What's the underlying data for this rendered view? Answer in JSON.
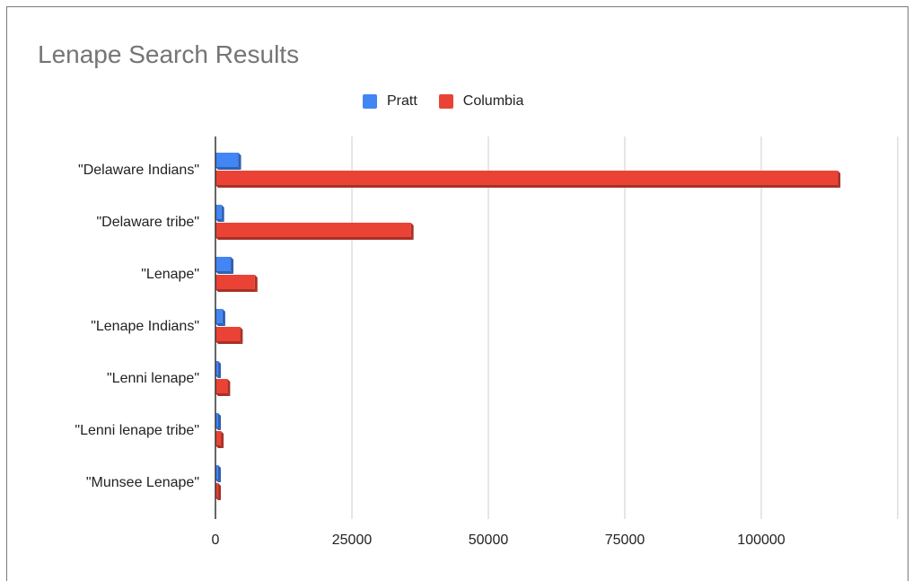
{
  "chart_data": {
    "type": "bar",
    "orientation": "horizontal",
    "title": "Lenape Search Results",
    "categories": [
      "\"Delaware Indians\"",
      "\"Delaware tribe\"",
      "\"Lenape\"",
      "\"Lenape Indians\"",
      "\"Lenni lenape\"",
      "\"Lenni lenape tribe\"",
      "\"Munsee Lenape\""
    ],
    "series": [
      {
        "name": "Pratt",
        "color": "#4285f4",
        "values": [
          4200,
          1100,
          2800,
          1300,
          500,
          200,
          200
        ]
      },
      {
        "name": "Columbia",
        "color": "#ea4335",
        "values": [
          114000,
          35800,
          7200,
          4500,
          2200,
          1000,
          500
        ]
      }
    ],
    "x_ticks": [
      "0",
      "25000",
      "50000",
      "75000",
      "100000"
    ],
    "xlim": [
      0,
      125000
    ],
    "legend_position": "top",
    "grid": true
  }
}
